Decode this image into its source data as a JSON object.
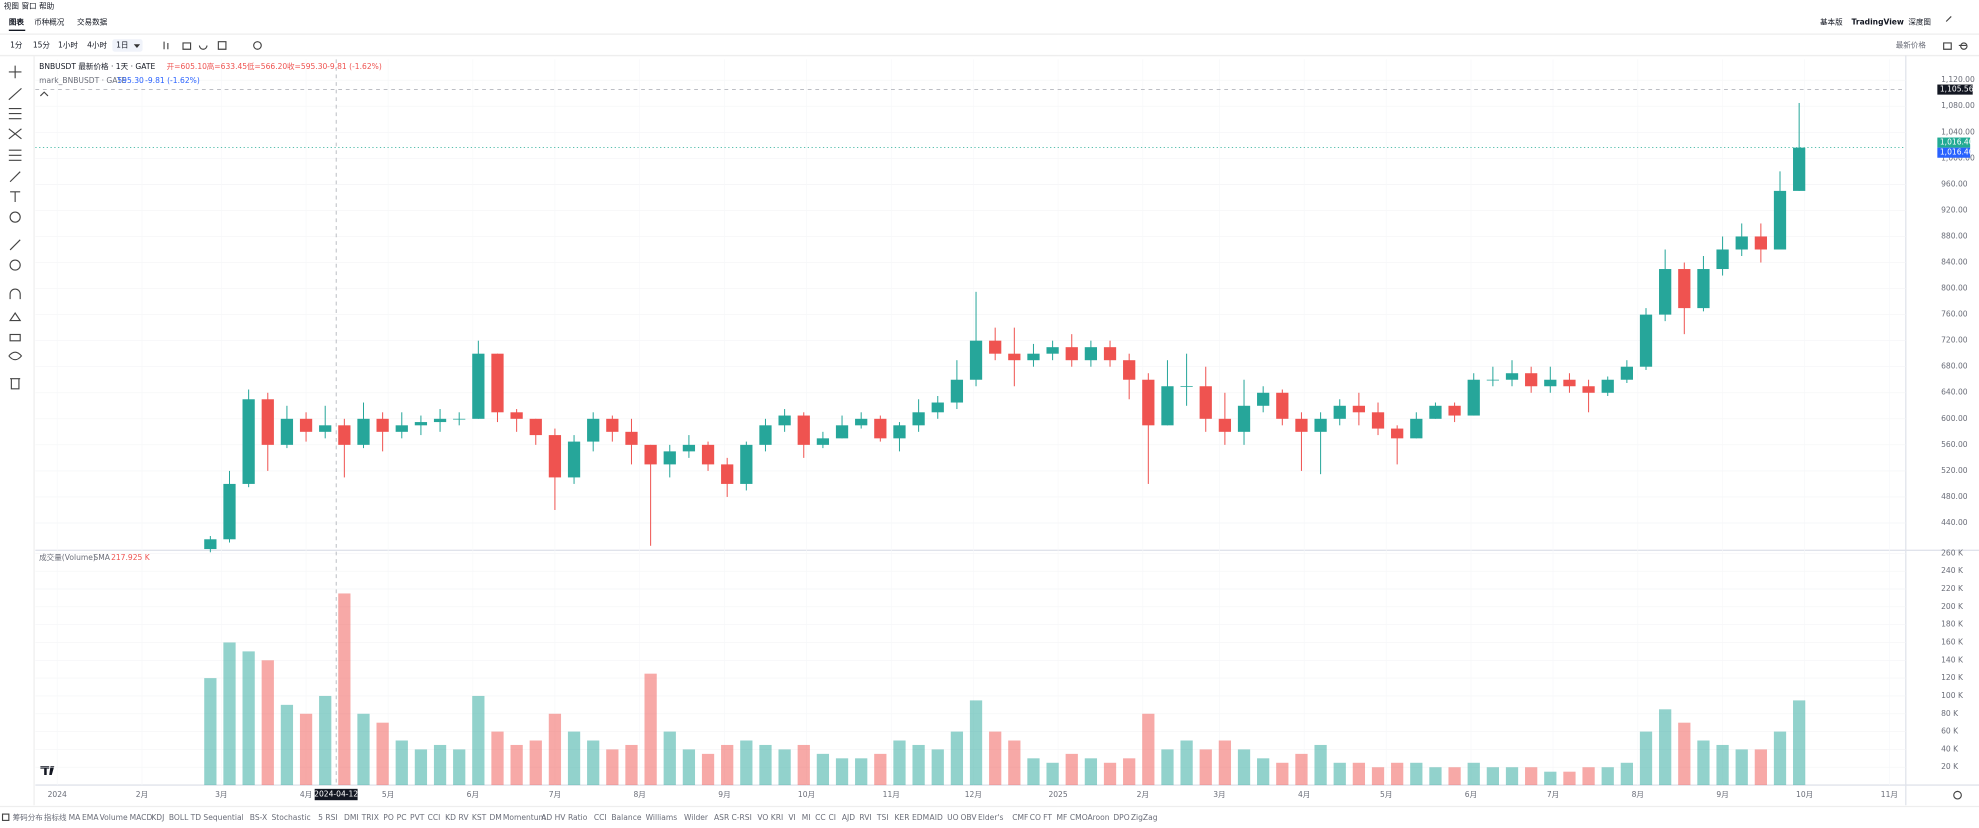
{
  "menu": [
    "视图",
    "窗口",
    "帮助"
  ],
  "tabs": [
    "图表",
    "币种概况",
    "交易数据"
  ],
  "intervals": [
    "1分",
    "15分",
    "1小时",
    "4小时",
    "1日"
  ],
  "header_right": [
    "基本版",
    "TradingView",
    "深度图"
  ],
  "price_source": "最新价格",
  "indicators": [
    "筹码分布",
    "指标线",
    "MA",
    "EMA",
    "Volume",
    "MACD",
    "KDJ",
    "BOLL",
    "TD Sequential",
    "BS-X",
    "Stochastic",
    "5 RSI",
    "DMI",
    "TRIX",
    "PO",
    "PC",
    "PVT",
    "CCI",
    "KD",
    "RV",
    "KST",
    "DM",
    "Momentum",
    "AD",
    "HV",
    "Ratio",
    "CCI",
    "Balance",
    "Williams",
    "Wilder",
    "ASR",
    "C-RSI",
    "VO",
    "KRI",
    "VI",
    "MI",
    "CC",
    "CI",
    "AJD",
    "RVI",
    "TSI",
    "KER",
    "EDM",
    "AID",
    "UO",
    "OBV",
    "Elder's",
    "CMF",
    "CO",
    "FT",
    "MF",
    "CMO",
    "Aroon",
    "DPO",
    "ZigZag"
  ],
  "chart_data": [
    {
      "type": "candlestick",
      "title": "BNBUSDT 最新价格 · 1天 · GATE",
      "legend": {
        "open": "开=605.10",
        "high": "高=633.45",
        "low": "低=566.20",
        "close": "收=595.30",
        "change": "-9.81 (-1.62%)"
      },
      "subtitle": "mark_BNBUSDT · GATE",
      "subtitle_values": [
        "595.30",
        "-9.81 (-1.62%)"
      ],
      "up_color": "#26a69a",
      "down_color": "#ef5350",
      "x": [
        "2024-02-26",
        "2024-03-04",
        "2024-03-11",
        "2024-03-18",
        "2024-03-25",
        "2024-04-01",
        "2024-04-08",
        "2024-04-15",
        "2024-04-22",
        "2024-04-29",
        "2024-05-06",
        "2024-05-13",
        "2024-05-20",
        "2024-05-27",
        "2024-06-03",
        "2024-06-10",
        "2024-06-17",
        "2024-06-24",
        "2024-07-01",
        "2024-07-08",
        "2024-07-15",
        "2024-07-22",
        "2024-07-29",
        "2024-08-05",
        "2024-08-12",
        "2024-08-19",
        "2024-08-26",
        "2024-09-02",
        "2024-09-09",
        "2024-09-16",
        "2024-09-23",
        "2024-09-30",
        "2024-10-07",
        "2024-10-14",
        "2024-10-21",
        "2024-10-28",
        "2024-11-04",
        "2024-11-11",
        "2024-11-18",
        "2024-11-25",
        "2024-12-02",
        "2024-12-09",
        "2024-12-16",
        "2024-12-23",
        "2024-12-30",
        "2025-01-06",
        "2025-01-13",
        "2025-01-20",
        "2025-01-27",
        "2025-02-03",
        "2025-02-10",
        "2025-02-17",
        "2025-02-24",
        "2025-03-03",
        "2025-03-10",
        "2025-03-17",
        "2025-03-24",
        "2025-03-31",
        "2025-04-07",
        "2025-04-14",
        "2025-04-21",
        "2025-04-28",
        "2025-05-05",
        "2025-05-12",
        "2025-05-19",
        "2025-05-26",
        "2025-06-02",
        "2025-06-09",
        "2025-06-16",
        "2025-06-23",
        "2025-06-30",
        "2025-07-07",
        "2025-07-14",
        "2025-07-21",
        "2025-07-28",
        "2025-08-04",
        "2025-08-11",
        "2025-08-18",
        "2025-08-25",
        "2025-09-01",
        "2025-09-08",
        "2025-09-15",
        "2025-09-22",
        "2025-09-29"
      ],
      "open": [
        400,
        415,
        500,
        630,
        560,
        600,
        580,
        590,
        560,
        600,
        580,
        590,
        595,
        600,
        600,
        700,
        610,
        600,
        575,
        510,
        565,
        600,
        580,
        560,
        530,
        550,
        560,
        530,
        500,
        560,
        590,
        605,
        560,
        570,
        590,
        600,
        570,
        590,
        610,
        625,
        660,
        720,
        700,
        690,
        700,
        710,
        690,
        710,
        690,
        660,
        590,
        650,
        650,
        600,
        580,
        620,
        640,
        600,
        580,
        600,
        620,
        610,
        585,
        570,
        600,
        620,
        605,
        660,
        660,
        670,
        650,
        660,
        650,
        640,
        660,
        680,
        760,
        830,
        770,
        830,
        860,
        880,
        860,
        950
      ],
      "high": [
        420,
        520,
        645,
        640,
        620,
        610,
        620,
        600,
        625,
        610,
        610,
        605,
        615,
        610,
        720,
        700,
        615,
        600,
        585,
        575,
        610,
        605,
        600,
        560,
        560,
        575,
        565,
        540,
        565,
        600,
        615,
        610,
        580,
        605,
        610,
        605,
        595,
        630,
        635,
        690,
        795,
        740,
        740,
        715,
        720,
        730,
        720,
        720,
        700,
        670,
        690,
        700,
        680,
        640,
        660,
        650,
        645,
        610,
        610,
        630,
        640,
        625,
        590,
        610,
        625,
        625,
        670,
        680,
        690,
        680,
        680,
        670,
        660,
        665,
        690,
        770,
        860,
        840,
        850,
        880,
        900,
        900,
        980,
        1085
      ],
      "low": [
        395,
        410,
        495,
        520,
        555,
        565,
        570,
        510,
        555,
        550,
        570,
        575,
        580,
        590,
        600,
        595,
        580,
        560,
        460,
        500,
        550,
        565,
        530,
        405,
        510,
        540,
        520,
        480,
        490,
        550,
        580,
        540,
        555,
        570,
        585,
        565,
        550,
        580,
        600,
        615,
        650,
        690,
        650,
        680,
        690,
        680,
        680,
        680,
        630,
        500,
        590,
        620,
        580,
        560,
        560,
        610,
        590,
        520,
        515,
        590,
        590,
        575,
        530,
        570,
        600,
        595,
        605,
        650,
        650,
        640,
        640,
        640,
        610,
        635,
        655,
        675,
        750,
        730,
        765,
        820,
        850,
        840,
        860,
        950
      ],
      "close": [
        415,
        500,
        630,
        560,
        600,
        580,
        590,
        560,
        600,
        580,
        590,
        595,
        600,
        600,
        700,
        610,
        600,
        575,
        510,
        565,
        600,
        580,
        560,
        530,
        550,
        560,
        530,
        500,
        560,
        590,
        605,
        560,
        570,
        590,
        600,
        570,
        590,
        610,
        625,
        660,
        720,
        700,
        690,
        700,
        710,
        690,
        710,
        690,
        660,
        590,
        650,
        650,
        600,
        580,
        620,
        640,
        600,
        580,
        600,
        620,
        610,
        585,
        570,
        600,
        620,
        605,
        660,
        660,
        670,
        650,
        660,
        650,
        640,
        660,
        680,
        760,
        830,
        770,
        830,
        860,
        880,
        860,
        950,
        1016.4
      ],
      "xlim": [
        "2023-12-24",
        "2025-11-07"
      ],
      "xticks": [
        {
          "value": "2024-01-01",
          "label": "2024"
        },
        {
          "value": "2024-02-01",
          "label": "2月"
        },
        {
          "value": "2024-03-01",
          "label": "3月"
        },
        {
          "value": "2024-04-01",
          "label": "4月"
        },
        {
          "value": "2024-05-01",
          "label": "5月"
        },
        {
          "value": "2024-06-01",
          "label": "6月"
        },
        {
          "value": "2024-07-01",
          "label": "7月"
        },
        {
          "value": "2024-08-01",
          "label": "8月"
        },
        {
          "value": "2024-09-01",
          "label": "9月"
        },
        {
          "value": "2024-10-01",
          "label": "10月"
        },
        {
          "value": "2024-11-01",
          "label": "11月"
        },
        {
          "value": "2024-12-01",
          "label": "12月"
        },
        {
          "value": "2025-01-01",
          "label": "2025"
        },
        {
          "value": "2025-02-01",
          "label": "2月"
        },
        {
          "value": "2025-03-01",
          "label": "3月"
        },
        {
          "value": "2025-04-01",
          "label": "4月"
        },
        {
          "value": "2025-05-01",
          "label": "5月"
        },
        {
          "value": "2025-06-01",
          "label": "6月"
        },
        {
          "value": "2025-07-01",
          "label": "7月"
        },
        {
          "value": "2025-08-01",
          "label": "8月"
        },
        {
          "value": "2025-09-01",
          "label": "9月"
        },
        {
          "value": "2025-10-01",
          "label": "10月"
        },
        {
          "value": "2025-11-01",
          "label": "11月"
        }
      ],
      "ylim": [
        400,
        1152
      ],
      "yticks": [
        {
          "value": 440,
          "label": "440.00"
        },
        {
          "value": 480,
          "label": "480.00"
        },
        {
          "value": 520,
          "label": "520.00"
        },
        {
          "value": 560,
          "label": "560.00"
        },
        {
          "value": 600,
          "label": "600.00"
        },
        {
          "value": 640,
          "label": "640.00"
        },
        {
          "value": 680,
          "label": "680.00"
        },
        {
          "value": 720,
          "label": "720.00"
        },
        {
          "value": 760,
          "label": "760.00"
        },
        {
          "value": 800,
          "label": "800.00"
        },
        {
          "value": 840,
          "label": "840.00"
        },
        {
          "value": 880,
          "label": "880.00"
        },
        {
          "value": 920,
          "label": "920.00"
        },
        {
          "value": 960,
          "label": "960.00"
        },
        {
          "value": 1000,
          "label": "1,000.00"
        },
        {
          "value": 1040,
          "label": "1,040.00"
        },
        {
          "value": 1080,
          "label": "1,080.00"
        },
        {
          "value": 1120,
          "label": "1,120.00"
        }
      ],
      "price_labels": [
        {
          "value": 1016.4,
          "label": "1,016.40",
          "color": "#22ab94"
        },
        {
          "value": 1016.4,
          "label": "1,016.40",
          "color": "#2962ff"
        }
      ],
      "crosshair": {
        "x": {
          "value": "2024-04-12",
          "label": "2024-04-12"
        },
        "y": {
          "value": 1105.56,
          "label": "1,105.56"
        }
      }
    },
    {
      "type": "bar",
      "title": "成交量(Volume)",
      "subtitle": "SMA",
      "value_label": "217.925 K",
      "values": [
        120000,
        160000,
        150000,
        140000,
        90000,
        80000,
        100000,
        215000,
        80000,
        70000,
        50000,
        40000,
        45000,
        40000,
        100000,
        60000,
        45000,
        50000,
        80000,
        60000,
        50000,
        40000,
        45000,
        125000,
        60000,
        40000,
        35000,
        45000,
        50000,
        45000,
        40000,
        45000,
        35000,
        30000,
        30000,
        35000,
        50000,
        45000,
        40000,
        60000,
        95000,
        60000,
        50000,
        30000,
        25000,
        35000,
        30000,
        25000,
        30000,
        80000,
        40000,
        50000,
        40000,
        50000,
        40000,
        30000,
        25000,
        35000,
        45000,
        25000,
        25000,
        20000,
        25000,
        25000,
        20000,
        20000,
        25000,
        20000,
        20000,
        20000,
        15000,
        15000,
        20000,
        20000,
        25000,
        60000,
        85000,
        70000,
        50000,
        45000,
        40000,
        40000,
        60000,
        95000
      ],
      "ylim": [
        0,
        262000
      ],
      "yticks": [
        {
          "value": 20000,
          "label": "20 K"
        },
        {
          "value": 40000,
          "label": "40 K"
        },
        {
          "value": 60000,
          "label": "60 K"
        },
        {
          "value": 80000,
          "label": "80 K"
        },
        {
          "value": 100000,
          "label": "100 K"
        },
        {
          "value": 120000,
          "label": "120 K"
        },
        {
          "value": 140000,
          "label": "140 K"
        },
        {
          "value": 160000,
          "label": "160 K"
        },
        {
          "value": 180000,
          "label": "180 K"
        },
        {
          "value": 200000,
          "label": "200 K"
        },
        {
          "value": 220000,
          "label": "220 K"
        },
        {
          "value": 240000,
          "label": "240 K"
        },
        {
          "value": 260000,
          "label": "260 K"
        }
      ]
    }
  ]
}
